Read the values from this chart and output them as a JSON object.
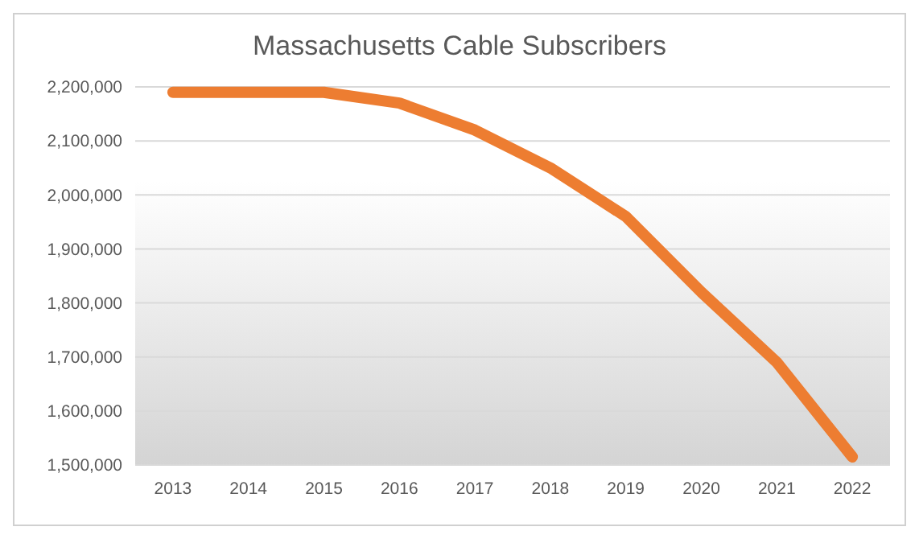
{
  "chart_data": {
    "type": "line",
    "title": "Massachusetts Cable Subscribers",
    "categories": [
      "2013",
      "2014",
      "2015",
      "2016",
      "2017",
      "2018",
      "2019",
      "2020",
      "2021",
      "2022"
    ],
    "series": [
      {
        "color": "#ed7d31",
        "values": [
          2190000,
          2190000,
          2190000,
          2170000,
          2120000,
          2050000,
          1960000,
          1820000,
          1690000,
          1515000
        ]
      }
    ],
    "ylim": [
      1500000,
      2200000
    ],
    "yticks": [
      {
        "value": 1500000,
        "label": "1,500,000"
      },
      {
        "value": 1600000,
        "label": "1,600,000"
      },
      {
        "value": 1700000,
        "label": "1,700,000"
      },
      {
        "value": 1800000,
        "label": "1,800,000"
      },
      {
        "value": 1900000,
        "label": "1,900,000"
      },
      {
        "value": 2000000,
        "label": "2,000,000"
      },
      {
        "value": 2100000,
        "label": "2,100,000"
      },
      {
        "value": 2200000,
        "label": "2,200,000"
      }
    ],
    "grid": "y",
    "marker": "none",
    "line_style": "solid"
  }
}
